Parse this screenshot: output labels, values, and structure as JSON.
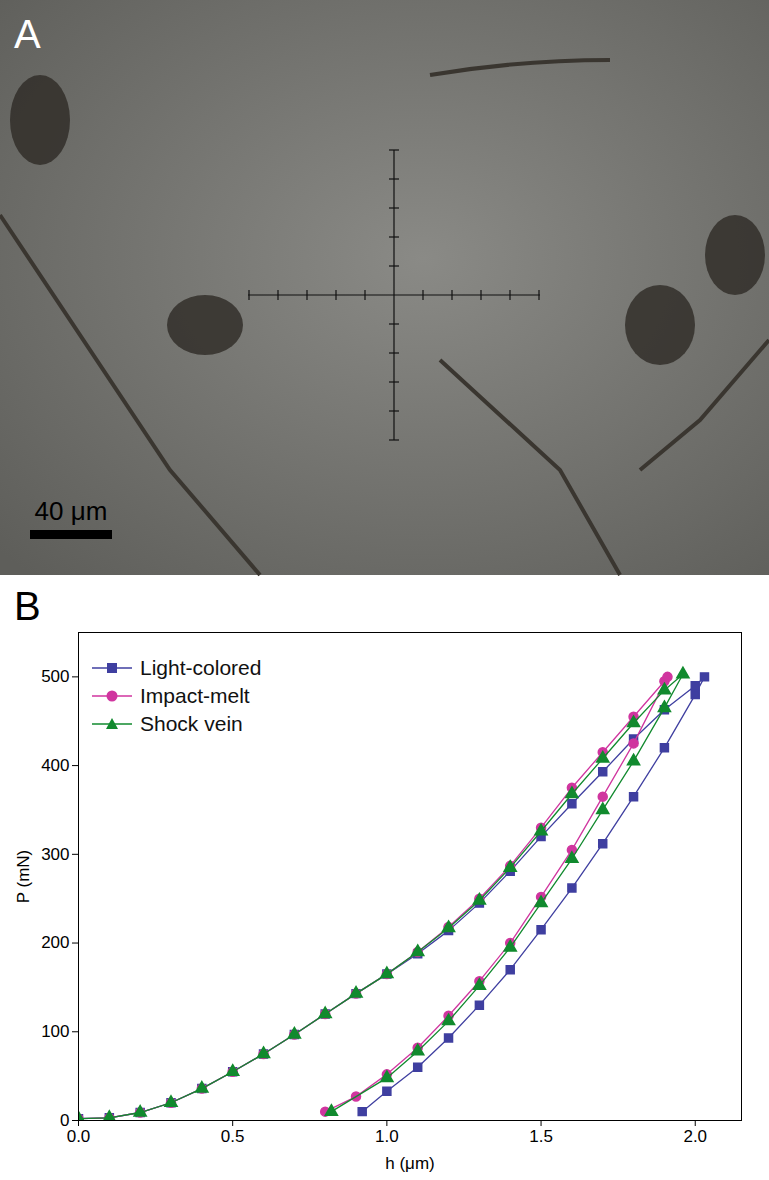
{
  "chart_data": {
    "type": "line",
    "panel_label": "B",
    "x_label": "h (μm)",
    "y_label": "P (mN)",
    "xlim": [
      0,
      2.15
    ],
    "ylim": [
      0,
      550
    ],
    "xticks": [
      {
        "value": 0,
        "label": "0.0"
      },
      {
        "value": 0.5,
        "label": "0.5"
      },
      {
        "value": 1,
        "label": "1.0"
      },
      {
        "value": 1.5,
        "label": "1.5"
      },
      {
        "value": 2,
        "label": "2.0"
      }
    ],
    "yticks": [
      0,
      100,
      200,
      300,
      400,
      500
    ],
    "grid": false,
    "legend": "upper left",
    "series": [
      {
        "name": "Light-colored",
        "color": "#3f3fa0",
        "marker": "square",
        "x": [
          0,
          0.1,
          0.2,
          0.3,
          0.4,
          0.5,
          0.6,
          0.7,
          0.8,
          0.9,
          1.0,
          1.1,
          1.2,
          1.3,
          1.4,
          1.5,
          1.6,
          1.7,
          1.8,
          1.9,
          2.0,
          2.03,
          2.0,
          1.9,
          1.8,
          1.7,
          1.6,
          1.5,
          1.4,
          1.3,
          1.2,
          1.1,
          1.0,
          0.92
        ],
        "values": [
          2,
          3,
          9,
          20,
          36,
          55,
          75,
          97,
          120,
          143,
          165,
          188,
          214,
          245,
          281,
          320,
          357,
          393,
          430,
          463,
          490,
          500,
          480,
          420,
          365,
          312,
          262,
          215,
          170,
          130,
          93,
          60,
          33,
          10
        ]
      },
      {
        "name": "Impact-melt",
        "color": "#d0359f",
        "marker": "circle",
        "x": [
          0,
          0.1,
          0.2,
          0.3,
          0.4,
          0.5,
          0.6,
          0.7,
          0.8,
          0.9,
          1.0,
          1.1,
          1.2,
          1.3,
          1.4,
          1.5,
          1.6,
          1.7,
          1.8,
          1.9,
          1.91,
          1.8,
          1.7,
          1.6,
          1.5,
          1.4,
          1.3,
          1.2,
          1.1,
          1.0,
          0.9,
          0.8
        ],
        "values": [
          2,
          3,
          9,
          20,
          36,
          55,
          75,
          97,
          120,
          143,
          165,
          190,
          218,
          250,
          287,
          330,
          375,
          415,
          455,
          495,
          500,
          425,
          365,
          305,
          252,
          200,
          157,
          118,
          82,
          52,
          27,
          10
        ]
      },
      {
        "name": "Shock vein",
        "color": "#118a2e",
        "marker": "triangle",
        "x": [
          0,
          0.1,
          0.2,
          0.3,
          0.4,
          0.5,
          0.6,
          0.7,
          0.8,
          0.9,
          1.0,
          1.1,
          1.2,
          1.3,
          1.4,
          1.5,
          1.6,
          1.7,
          1.8,
          1.9,
          1.96,
          1.9,
          1.8,
          1.7,
          1.6,
          1.5,
          1.4,
          1.3,
          1.2,
          1.1,
          1.0,
          0.82
        ],
        "values": [
          2,
          3,
          9,
          20,
          36,
          55,
          75,
          97,
          120,
          143,
          165,
          190,
          217,
          248,
          285,
          326,
          368,
          408,
          448,
          485,
          503,
          465,
          405,
          350,
          295,
          245,
          195,
          152,
          112,
          78,
          48,
          10
        ]
      }
    ]
  },
  "image_panel": {
    "panel_label": "A",
    "scale_bar": "40 μm"
  }
}
